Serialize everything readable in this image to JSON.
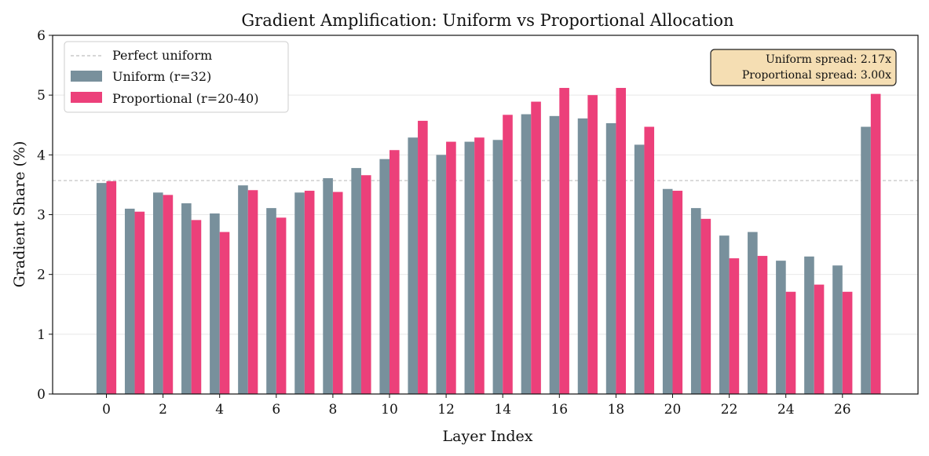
{
  "chart_data": {
    "type": "bar",
    "title": "Gradient Amplification: Uniform vs Proportional Allocation",
    "xlabel": "Layer Index",
    "ylabel": "Gradient Share (%)",
    "ylim": [
      0,
      6
    ],
    "yticks": [
      "0",
      "1",
      "2",
      "3",
      "4",
      "5",
      "6"
    ],
    "xticks": [
      "0",
      "2",
      "4",
      "6",
      "8",
      "10",
      "12",
      "14",
      "16",
      "18",
      "20",
      "22",
      "24",
      "26"
    ],
    "grid": "y",
    "legend_position": "top-left",
    "reference_line": {
      "label": "Perfect uniform",
      "value": 3.57,
      "color": "#bdbdbd"
    },
    "categories": [
      0,
      1,
      2,
      3,
      4,
      5,
      6,
      7,
      8,
      9,
      10,
      11,
      12,
      13,
      14,
      15,
      16,
      17,
      18,
      19,
      20,
      21,
      22,
      23,
      24,
      25,
      26,
      27
    ],
    "series": [
      {
        "name": "Uniform (r=32)",
        "color": "#78909c",
        "values": [
          3.53,
          3.1,
          3.37,
          3.19,
          3.02,
          3.49,
          3.11,
          3.37,
          3.61,
          3.78,
          3.93,
          4.29,
          4.0,
          4.22,
          4.25,
          4.68,
          4.65,
          4.61,
          4.53,
          4.17,
          3.43,
          3.11,
          2.65,
          2.71,
          2.23,
          2.3,
          2.15,
          4.47
        ]
      },
      {
        "name": "Proportional (r=20-40)",
        "color": "#ec407a",
        "values": [
          3.56,
          3.05,
          3.33,
          2.91,
          2.71,
          3.41,
          2.95,
          3.4,
          3.38,
          3.66,
          4.08,
          4.57,
          4.22,
          4.29,
          4.67,
          4.89,
          5.12,
          5.0,
          5.12,
          4.47,
          3.4,
          2.93,
          2.27,
          2.31,
          1.71,
          1.83,
          1.71,
          5.02
        ]
      }
    ],
    "annotation": {
      "lines": [
        "Uniform spread: 2.17x",
        "Proportional spread: 3.00x"
      ],
      "box_color": "#f5deb3"
    }
  }
}
